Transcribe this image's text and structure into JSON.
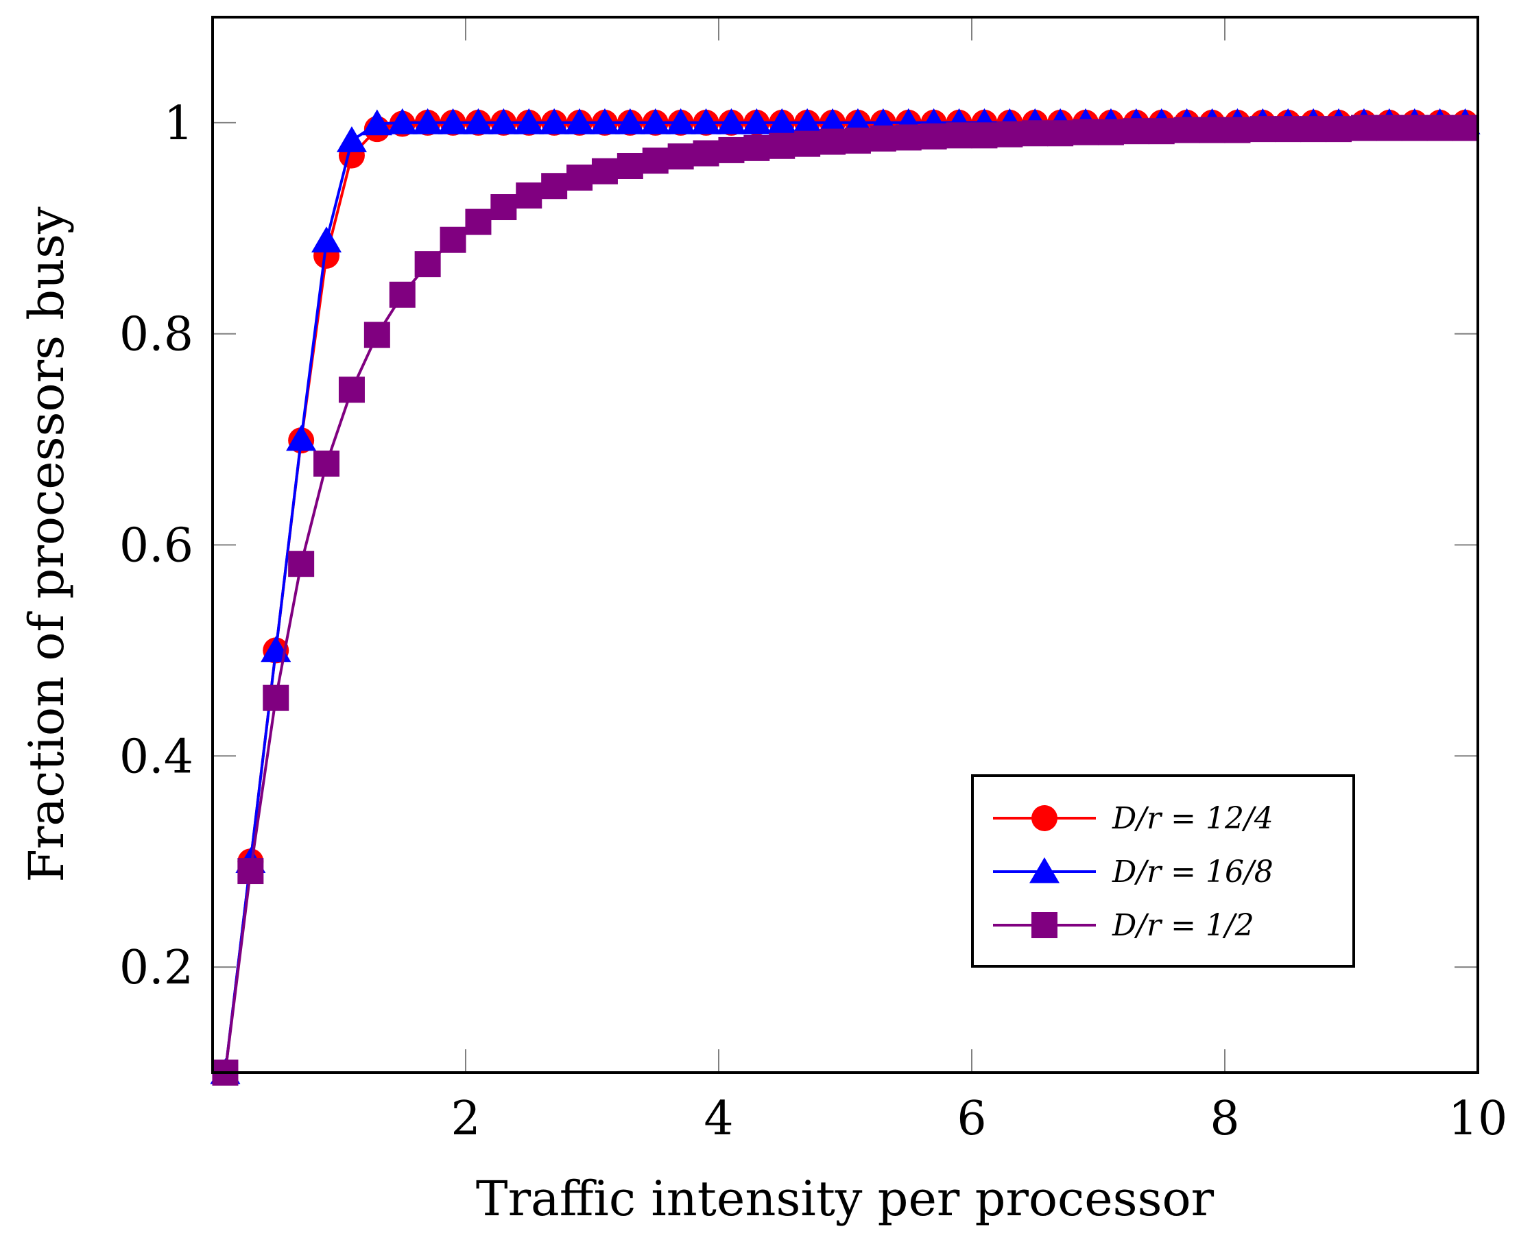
{
  "chart_data": {
    "type": "line",
    "title": "",
    "xlabel": "Traffic intensity per processor",
    "ylabel": "Fraction of processors busy",
    "xlim": [
      0,
      10
    ],
    "ylim": [
      0.1,
      1.1
    ],
    "xticks": [
      2,
      4,
      6,
      8,
      10
    ],
    "yticks": [
      0.2,
      0.4,
      0.6,
      0.8,
      1.0
    ],
    "xtick_labels": [
      "2",
      "4",
      "6",
      "8",
      "10"
    ],
    "ytick_labels": [
      "0.2",
      "0.4",
      "0.6",
      "0.8",
      "1"
    ],
    "grid": false,
    "legend_position": "lower-right",
    "x_start": 0.1,
    "x_step": 0.2,
    "x_count": 50,
    "series": [
      {
        "name": "D/r = 12/4",
        "color": "#ff0000",
        "marker": "circle",
        "values": [
          0.1,
          0.3,
          0.5,
          0.699,
          0.874,
          0.969,
          0.994,
          0.999,
          1,
          1,
          1,
          1,
          1,
          1,
          1,
          1,
          1,
          1,
          1,
          1,
          1,
          1,
          1,
          1,
          1,
          1,
          1,
          1,
          1,
          1,
          1,
          1,
          1,
          1,
          1,
          1,
          1,
          1,
          1,
          1,
          1,
          1,
          1,
          1,
          1,
          1,
          1,
          1,
          1,
          1
        ]
      },
      {
        "name": "D/r = 16/8",
        "color": "#0000ff",
        "marker": "triangle",
        "values": [
          0.1,
          0.3,
          0.5,
          0.7,
          0.888,
          0.983,
          0.999,
          1,
          1,
          1,
          1,
          1,
          1,
          1,
          1,
          1,
          1,
          1,
          1,
          1,
          1,
          1,
          1,
          1,
          1,
          1,
          1,
          1,
          1,
          1,
          1,
          1,
          1,
          1,
          1,
          1,
          1,
          1,
          1,
          1,
          1,
          1,
          1,
          1,
          1,
          1,
          1,
          1,
          1,
          1
        ]
      },
      {
        "name": "D/r = 1/2",
        "color": "#800080",
        "marker": "square",
        "values": [
          0.1,
          0.291,
          0.455,
          0.582,
          0.677,
          0.747,
          0.799,
          0.837,
          0.866,
          0.889,
          0.906,
          0.92,
          0.931,
          0.94,
          0.948,
          0.954,
          0.959,
          0.964,
          0.968,
          0.971,
          0.974,
          0.976,
          0.978,
          0.98,
          0.982,
          0.983,
          0.985,
          0.986,
          0.987,
          0.988,
          0.988,
          0.989,
          0.99,
          0.99,
          0.991,
          0.991,
          0.992,
          0.992,
          0.993,
          0.993,
          0.993,
          0.994,
          0.994,
          0.994,
          0.994,
          0.995,
          0.995,
          0.995,
          0.995,
          0.995
        ]
      }
    ]
  }
}
